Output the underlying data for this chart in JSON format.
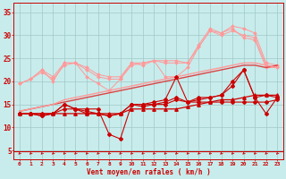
{
  "x": [
    0,
    1,
    2,
    3,
    4,
    5,
    6,
    7,
    8,
    9,
    10,
    11,
    12,
    13,
    14,
    15,
    16,
    17,
    18,
    19,
    20,
    21,
    22,
    23
  ],
  "line_smooth1": [
    13.5,
    14.0,
    14.5,
    15.0,
    15.5,
    16.0,
    16.5,
    17.0,
    17.5,
    18.0,
    18.5,
    19.0,
    19.5,
    20.0,
    20.5,
    21.0,
    21.5,
    22.0,
    22.5,
    23.0,
    23.5,
    23.5,
    23.0,
    23.5
  ],
  "line_smooth2": [
    13.5,
    14.0,
    14.5,
    15.0,
    16.0,
    16.5,
    17.0,
    17.5,
    18.0,
    18.5,
    19.0,
    19.5,
    20.0,
    20.5,
    21.0,
    21.5,
    22.0,
    22.5,
    23.0,
    23.5,
    24.0,
    24.0,
    23.5,
    23.0
  ],
  "line_zigzag_light1": [
    19.5,
    20.5,
    22.5,
    20.0,
    24.0,
    24.0,
    21.0,
    19.5,
    18.0,
    20.5,
    24.0,
    23.5,
    24.5,
    21.0,
    21.0,
    23.0,
    27.5,
    31.0,
    30.5,
    31.5,
    29.5,
    29.0,
    23.0,
    23.0
  ],
  "line_zigzag_light2": [
    19.5,
    20.5,
    22.5,
    21.0,
    24.0,
    24.0,
    23.0,
    21.5,
    21.0,
    21.0,
    24.0,
    24.0,
    24.5,
    24.5,
    24.5,
    24.0,
    28.0,
    31.5,
    30.5,
    32.0,
    31.5,
    30.5,
    24.0,
    23.5
  ],
  "line_zigzag_light3": [
    19.5,
    20.5,
    22.0,
    20.5,
    23.5,
    24.0,
    22.5,
    21.0,
    20.5,
    20.5,
    23.5,
    24.0,
    24.5,
    24.0,
    24.0,
    24.0,
    27.5,
    31.0,
    30.0,
    31.0,
    30.0,
    29.5,
    23.5,
    23.0
  ],
  "line_dark_flat": [
    13.0,
    13.0,
    13.0,
    13.0,
    13.0,
    13.0,
    13.0,
    13.0,
    13.0,
    13.0,
    14.0,
    14.0,
    14.0,
    14.0,
    14.0,
    14.5,
    15.0,
    15.5,
    16.0,
    16.0,
    16.5,
    17.0,
    17.0,
    17.0
  ],
  "line_dark_zigzag1": [
    13.0,
    13.0,
    12.5,
    13.0,
    15.0,
    14.0,
    13.0,
    13.0,
    12.5,
    13.0,
    15.0,
    15.0,
    15.5,
    16.0,
    21.0,
    15.5,
    16.0,
    16.5,
    17.0,
    19.0,
    22.5,
    16.5,
    17.0,
    16.5
  ],
  "line_dark_zigzag2": [
    13.0,
    13.0,
    12.5,
    13.0,
    15.0,
    14.0,
    13.5,
    13.0,
    12.5,
    13.0,
    15.0,
    15.0,
    15.0,
    15.0,
    16.0,
    15.5,
    15.5,
    15.5,
    15.5,
    15.5,
    15.5,
    15.5,
    15.5,
    16.0
  ],
  "line_dark_drop": [
    13.0,
    13.0,
    13.0,
    13.0,
    14.0,
    14.0,
    14.0,
    14.0,
    8.5,
    7.5,
    15.0,
    14.5,
    15.0,
    15.5,
    16.5,
    15.5,
    16.5,
    16.5,
    17.0,
    20.0,
    22.5,
    16.5,
    13.0,
    16.5
  ],
  "bg_color": "#c8ecec",
  "grid_color": "#a0c8c8",
  "line_dark_color": "#cc0000",
  "line_light_color": "#ff9999",
  "line_smooth_color": "#dd4444",
  "xlabel": "Vent moyen/en rafales ( km/h )",
  "ylim": [
    3,
    37
  ],
  "xlim": [
    -0.5,
    23.5
  ],
  "yticks": [
    5,
    10,
    15,
    20,
    25,
    30,
    35
  ],
  "xticks": [
    0,
    1,
    2,
    3,
    4,
    5,
    6,
    7,
    8,
    9,
    10,
    11,
    12,
    13,
    14,
    15,
    16,
    17,
    18,
    19,
    20,
    21,
    22,
    23
  ]
}
